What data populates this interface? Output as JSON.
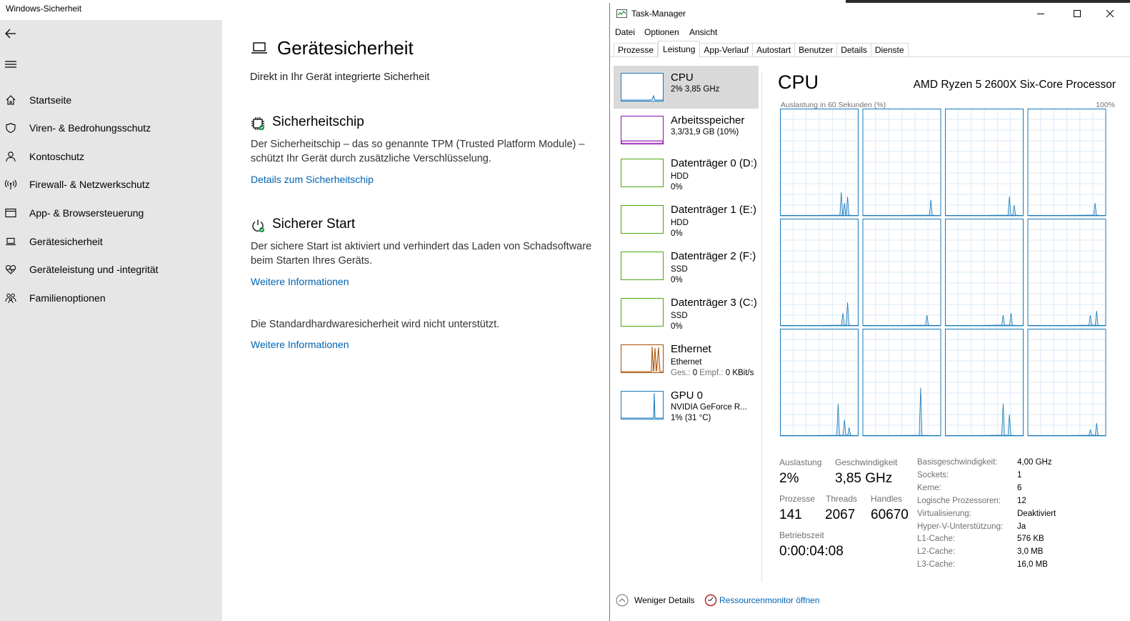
{
  "security": {
    "window_title": "Windows-Sicherheit",
    "nav": [
      {
        "label": "Startseite",
        "icon": "home-icon"
      },
      {
        "label": "Viren- & Bedrohungsschutz",
        "icon": "shield-icon"
      },
      {
        "label": "Kontoschutz",
        "icon": "person-icon"
      },
      {
        "label": "Firewall- & Netzwerkschutz",
        "icon": "antenna-icon"
      },
      {
        "label": "App- & Browsersteuerung",
        "icon": "browser-window-icon"
      },
      {
        "label": "Gerätesicherheit",
        "icon": "laptop-icon"
      },
      {
        "label": "Geräteleistung und -integrität",
        "icon": "heart-icon"
      },
      {
        "label": "Familienoptionen",
        "icon": "family-icon"
      }
    ],
    "page_title": "Gerätesicherheit",
    "page_subtitle": "Direkt in Ihr Gerät integrierte Sicherheit",
    "chip": {
      "heading": "Sicherheitschip",
      "text": "Der Sicherheitschip – das so genannte TPM (Trusted Platform Module) – schützt Ihr Gerät durch zusätzliche Verschlüsselung.",
      "link": "Details zum Sicherheitschip"
    },
    "secure_boot": {
      "heading": "Sicherer Start",
      "text": "Der sichere Start ist aktiviert und verhindert das Laden von Schadsoftware beim Starten Ihres Geräts.",
      "link": "Weitere Informationen"
    },
    "standard": {
      "text": "Die Standardhardwaresicherheit wird nicht unterstützt.",
      "link": "Weitere Informationen"
    },
    "accent_color": "#0063b1"
  },
  "taskmanager": {
    "title": "Task-Manager",
    "menu": [
      "Datei",
      "Optionen",
      "Ansicht"
    ],
    "tabs": [
      "Prozesse",
      "Leistung",
      "App-Verlauf",
      "Autostart",
      "Benutzer",
      "Details",
      "Dienste"
    ],
    "active_tab": "Leistung",
    "resources": [
      {
        "name": "CPU",
        "line1": "2% 3,85 GHz",
        "line2": "",
        "color": "#1779ba"
      },
      {
        "name": "Arbeitsspeicher",
        "line1": "3,3/31,9 GB (10%)",
        "line2": "",
        "color": "#8b12ae"
      },
      {
        "name": "Datenträger 0 (D:)",
        "line1": "HDD",
        "line2": "0%",
        "color": "#4da60c"
      },
      {
        "name": "Datenträger 1 (E:)",
        "line1": "HDD",
        "line2": "0%",
        "color": "#4da60c"
      },
      {
        "name": "Datenträger 2 (F:)",
        "line1": "SSD",
        "line2": "0%",
        "color": "#4da60c"
      },
      {
        "name": "Datenträger 3 (C:)",
        "line1": "SSD",
        "line2": "0%",
        "color": "#4da60c"
      },
      {
        "name": "Ethernet",
        "line1": "Ethernet",
        "line2_label1": "Ges.:",
        "line2_val1": "0",
        "line2_label2": "Empf.:",
        "line2_val2": "0 KBit/s",
        "color": "#a74f01"
      },
      {
        "name": "GPU 0",
        "line1": "NVIDIA GeForce R...",
        "line2": "1% (31 °C)",
        "color": "#1779ba"
      }
    ],
    "cpu": {
      "heading": "CPU",
      "model": "AMD Ryzen 5 2600X Six-Core Processor",
      "graph_label": "Auslastung in 60 Sekunden (%)",
      "graph_max": "100%",
      "stats": {
        "auslastung_label": "Auslastung",
        "auslastung": "2%",
        "geschwindigkeit_label": "Geschwindigkeit",
        "geschwindigkeit": "3,85 GHz",
        "prozesse_label": "Prozesse",
        "prozesse": "141",
        "threads_label": "Threads",
        "threads": "2067",
        "handles_label": "Handles",
        "handles": "60670",
        "betriebszeit_label": "Betriebszeit",
        "betriebszeit": "0:00:04:08"
      },
      "details": [
        {
          "k": "Basisgeschwindigkeit:",
          "v": "4,00 GHz"
        },
        {
          "k": "Sockets:",
          "v": "1"
        },
        {
          "k": "Kerne:",
          "v": "6"
        },
        {
          "k": "Logische Prozessoren:",
          "v": "12"
        },
        {
          "k": "Virtualisierung:",
          "v": "Deaktiviert"
        },
        {
          "k": "Hyper-V-Unterstützung:",
          "v": "Ja"
        },
        {
          "k": "L1-Cache:",
          "v": "576 KB"
        },
        {
          "k": "L2-Cache:",
          "v": "3,0 MB"
        },
        {
          "k": "L3-Cache:",
          "v": "16,0 MB"
        }
      ]
    },
    "footer": {
      "less_details": "Weniger Details",
      "resmon": "Ressourcenmonitor öffnen"
    }
  }
}
